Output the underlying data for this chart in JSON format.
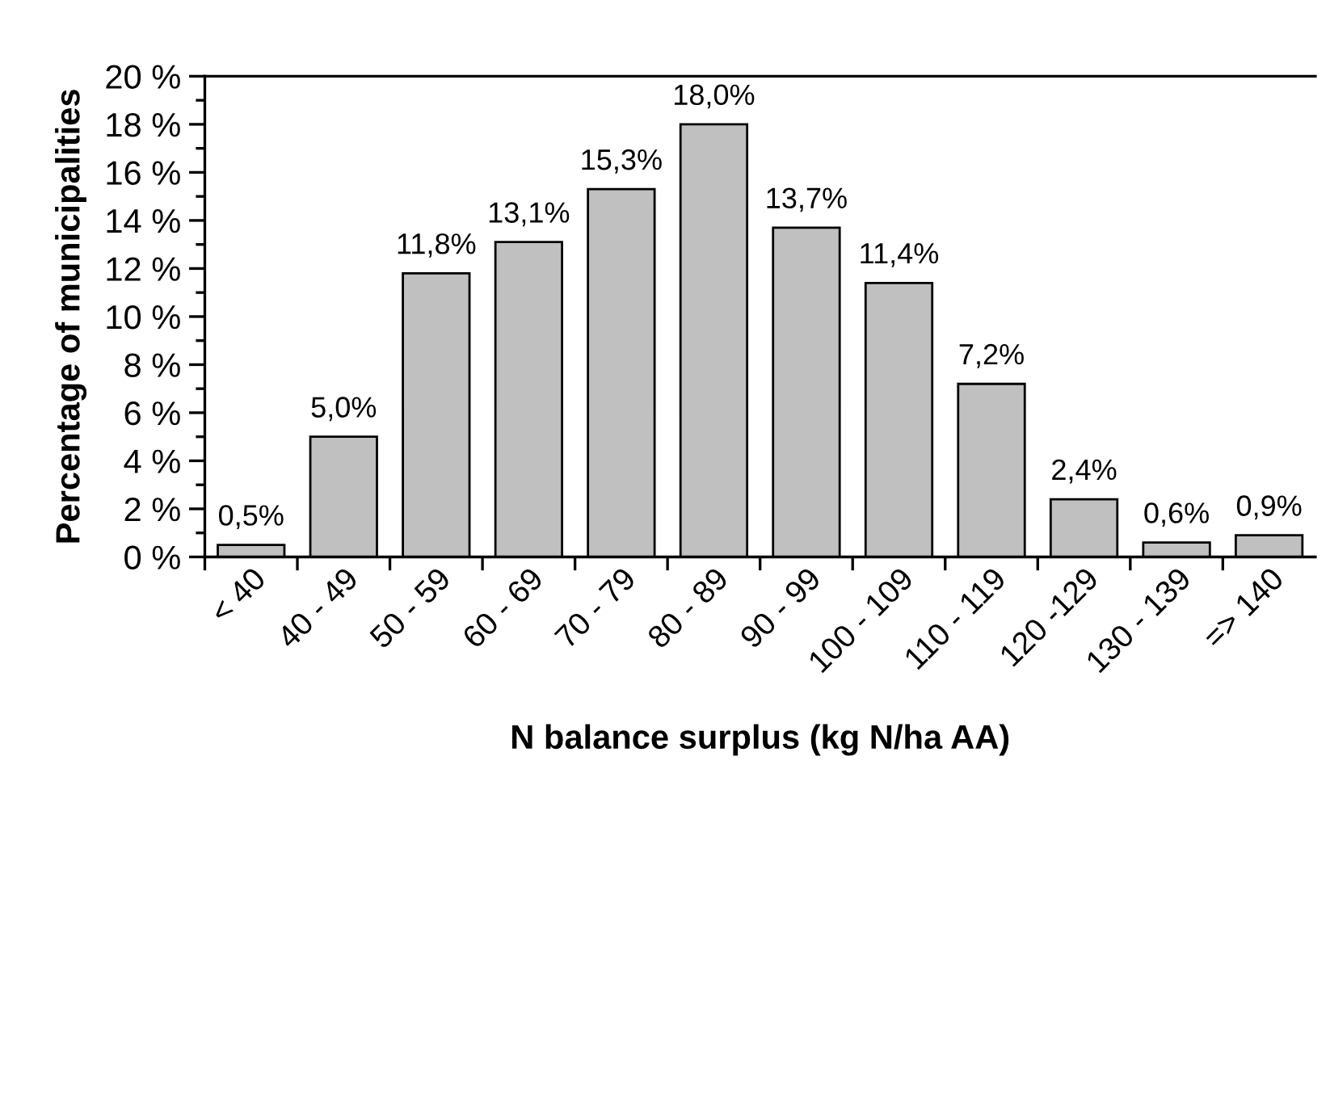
{
  "chart_data": {
    "type": "bar",
    "xlabel": "N balance surplus (kg N/ha AA)",
    "ylabel": "Percentage of municipalities",
    "categories": [
      "< 40",
      "40 - 49",
      "50 - 59",
      "60 - 69",
      "70 - 79",
      "80 - 89",
      "90 - 99",
      "100 - 109",
      "110 - 119",
      "120 -129",
      "130 - 139",
      "=> 140"
    ],
    "values": [
      0.5,
      5.0,
      11.8,
      13.1,
      15.3,
      18.0,
      13.7,
      11.4,
      7.2,
      2.4,
      0.6,
      0.9
    ],
    "value_labels": [
      "0,5%",
      "5,0%",
      "11,8%",
      "13,1%",
      "15,3%",
      "18,0%",
      "13,7%",
      "11,4%",
      "7,2%",
      "2,4%",
      "0,6%",
      "0,9%"
    ],
    "color": "#c0c0c0",
    "ylim": [
      0,
      20
    ],
    "yticks": [
      {
        "value": 0,
        "label": "0 %"
      },
      {
        "value": 1,
        "label": null
      },
      {
        "value": 2,
        "label": "2 %"
      },
      {
        "value": 3,
        "label": null
      },
      {
        "value": 4,
        "label": "4 %"
      },
      {
        "value": 5,
        "label": null
      },
      {
        "value": 6,
        "label": "6 %"
      },
      {
        "value": 7,
        "label": null
      },
      {
        "value": 8,
        "label": "8 %"
      },
      {
        "value": 9,
        "label": null
      },
      {
        "value": 10,
        "label": "10 %"
      },
      {
        "value": 11,
        "label": null
      },
      {
        "value": 12,
        "label": "12 %"
      },
      {
        "value": 13,
        "label": null
      },
      {
        "value": 14,
        "label": "14 %"
      },
      {
        "value": 15,
        "label": null
      },
      {
        "value": 16,
        "label": "16 %"
      },
      {
        "value": 17,
        "label": null
      },
      {
        "value": 18,
        "label": "18 %"
      },
      {
        "value": 19,
        "label": null
      },
      {
        "value": 20,
        "label": "20 %"
      }
    ],
    "grid": false,
    "legend": false
  }
}
